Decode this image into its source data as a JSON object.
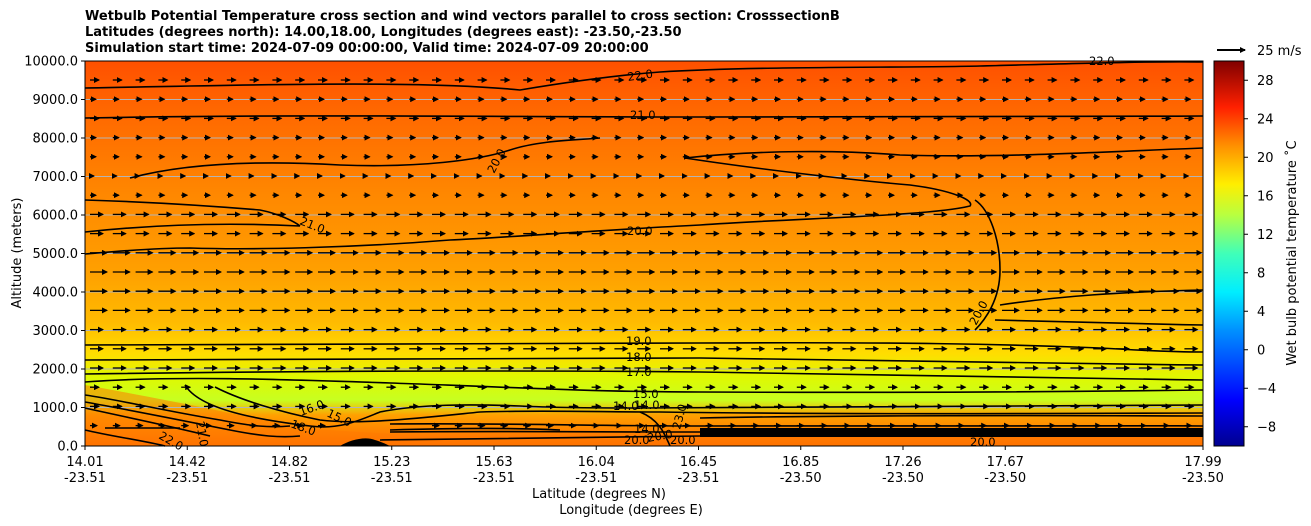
{
  "title_lines": [
    "Wetbulb Potential Temperature cross section and wind vectors parallel to cross section: CrosssectionB",
    "Latitudes (degrees north): 14.00,18.00, Longitudes (degrees east): -23.50,-23.50",
    "Simulation start time: 2024-07-09 00:00:00, Valid time: 2024-07-09 20:00:00"
  ],
  "chart_data": {
    "type": "heatmap",
    "title": "Wetbulb Potential Temperature cross section and wind vectors parallel to cross section: CrosssectionB",
    "ylabel": "Altitude (meters)",
    "xlabel_lat": "Latitude (degrees N)",
    "xlabel_lon": "Longitude (degrees E)",
    "ylim": [
      0,
      10000
    ],
    "y_ticks": [
      "0.0",
      "1000.0",
      "2000.0",
      "3000.0",
      "4000.0",
      "5000.0",
      "6000.0",
      "7000.0",
      "8000.0",
      "9000.0",
      "10000.0"
    ],
    "x_ticks_lat": [
      "14.01",
      "14.42",
      "14.82",
      "15.23",
      "15.63",
      "16.04",
      "16.45",
      "16.85",
      "17.26",
      "17.67",
      "17.99"
    ],
    "x_ticks_lon": [
      "-23.51",
      "-23.51",
      "-23.51",
      "-23.51",
      "-23.51",
      "-23.51",
      "-23.51",
      "-23.50",
      "-23.50",
      "-23.50",
      "-23.50"
    ],
    "colorbar": {
      "label": "Wet bulb potential temperature ˚C",
      "ticks": [
        "−8",
        "−4",
        "0",
        "4",
        "8",
        "12",
        "16",
        "20",
        "24",
        "28"
      ],
      "range": [
        -10,
        30
      ]
    },
    "wind_reference": "25 m/s",
    "contour_labels": [
      "22.0",
      "22.0",
      "21.0",
      "21.0",
      "20.0",
      "20.0",
      "20.0",
      "20.0",
      "20.0",
      "19.0",
      "18.0",
      "17.0",
      "15.0",
      "15.0",
      "14.0",
      "14.0",
      "14.0",
      "16.0",
      "20.0",
      "20.0",
      "21.0",
      "22.0",
      "23.0",
      "18.0"
    ]
  }
}
